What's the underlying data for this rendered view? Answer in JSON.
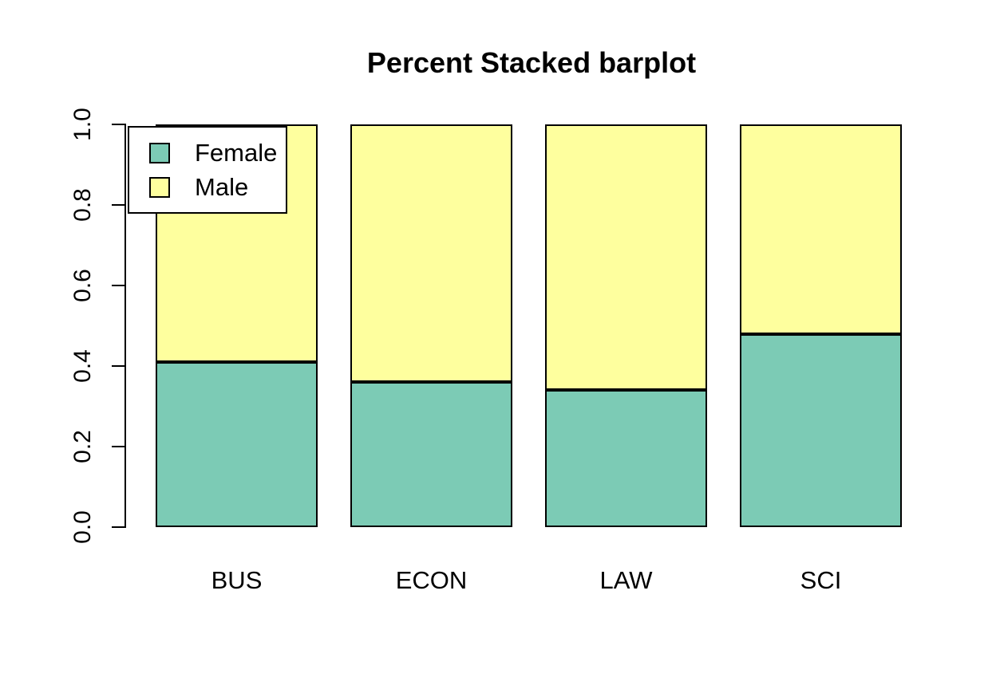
{
  "chart_data": {
    "type": "bar",
    "stacked": true,
    "percent": true,
    "title": "Percent Stacked barplot",
    "categories": [
      "BUS",
      "ECON",
      "LAW",
      "SCI"
    ],
    "series": [
      {
        "name": "Female",
        "color": "#7CCBB5",
        "values": [
          0.41,
          0.36,
          0.34,
          0.48
        ]
      },
      {
        "name": "Male",
        "color": "#FEFF9E",
        "values": [
          0.59,
          0.64,
          0.66,
          0.52
        ]
      }
    ],
    "xlabel": "",
    "ylabel": "",
    "ylim": [
      0,
      1
    ],
    "ytick_labels": [
      "0.0",
      "0.2",
      "0.4",
      "0.6",
      "0.8",
      "1.0"
    ],
    "legend_position": "top-left",
    "grid": false,
    "axis_color": "#000000",
    "bar_border_color": "#000000",
    "background_color": "#FFFFFF"
  }
}
